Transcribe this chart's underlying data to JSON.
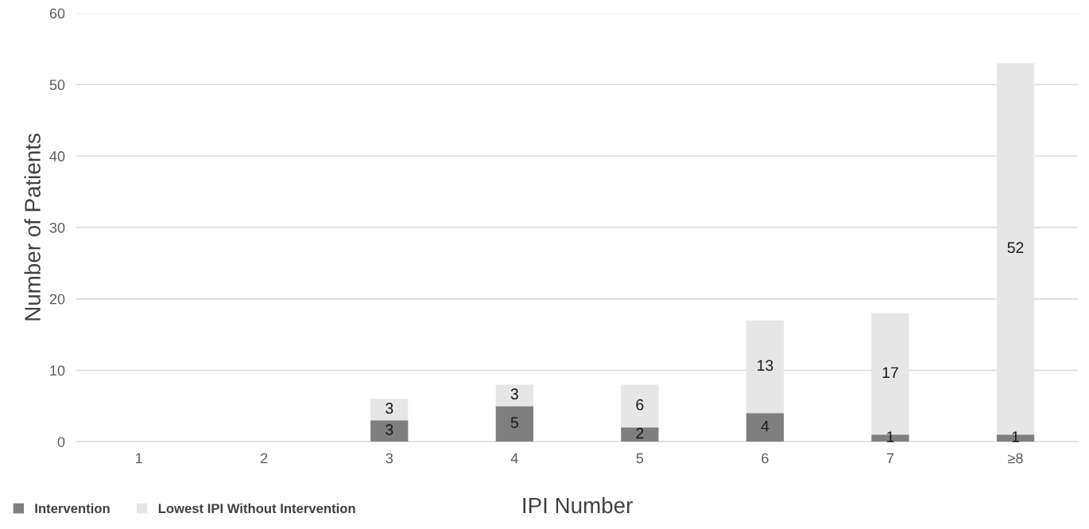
{
  "chart_data": {
    "type": "bar",
    "stacked": true,
    "xlabel": "IPI Number",
    "ylabel": "Number of Patients",
    "categories": [
      "1",
      "2",
      "3",
      "4",
      "5",
      "6",
      "7",
      "≥8"
    ],
    "series": [
      {
        "name": "Intervention",
        "color": "#7f7f7f",
        "values": [
          0,
          0,
          3,
          5,
          2,
          4,
          1,
          1
        ],
        "value_labels": [
          null,
          null,
          "3",
          "5",
          "2",
          "4",
          "1",
          "1"
        ]
      },
      {
        "name": "Lowest IPI Without Intervention",
        "color": "#e7e6e6",
        "values": [
          0,
          0,
          3,
          3,
          6,
          13,
          17,
          52
        ],
        "value_labels": [
          null,
          null,
          "3",
          "3",
          "6",
          "13",
          "17",
          "52"
        ]
      }
    ],
    "ylim": [
      0,
      60
    ],
    "yticks": [
      0,
      10,
      20,
      30,
      40,
      50,
      60
    ],
    "grid": "y",
    "legend": "bottom left"
  }
}
